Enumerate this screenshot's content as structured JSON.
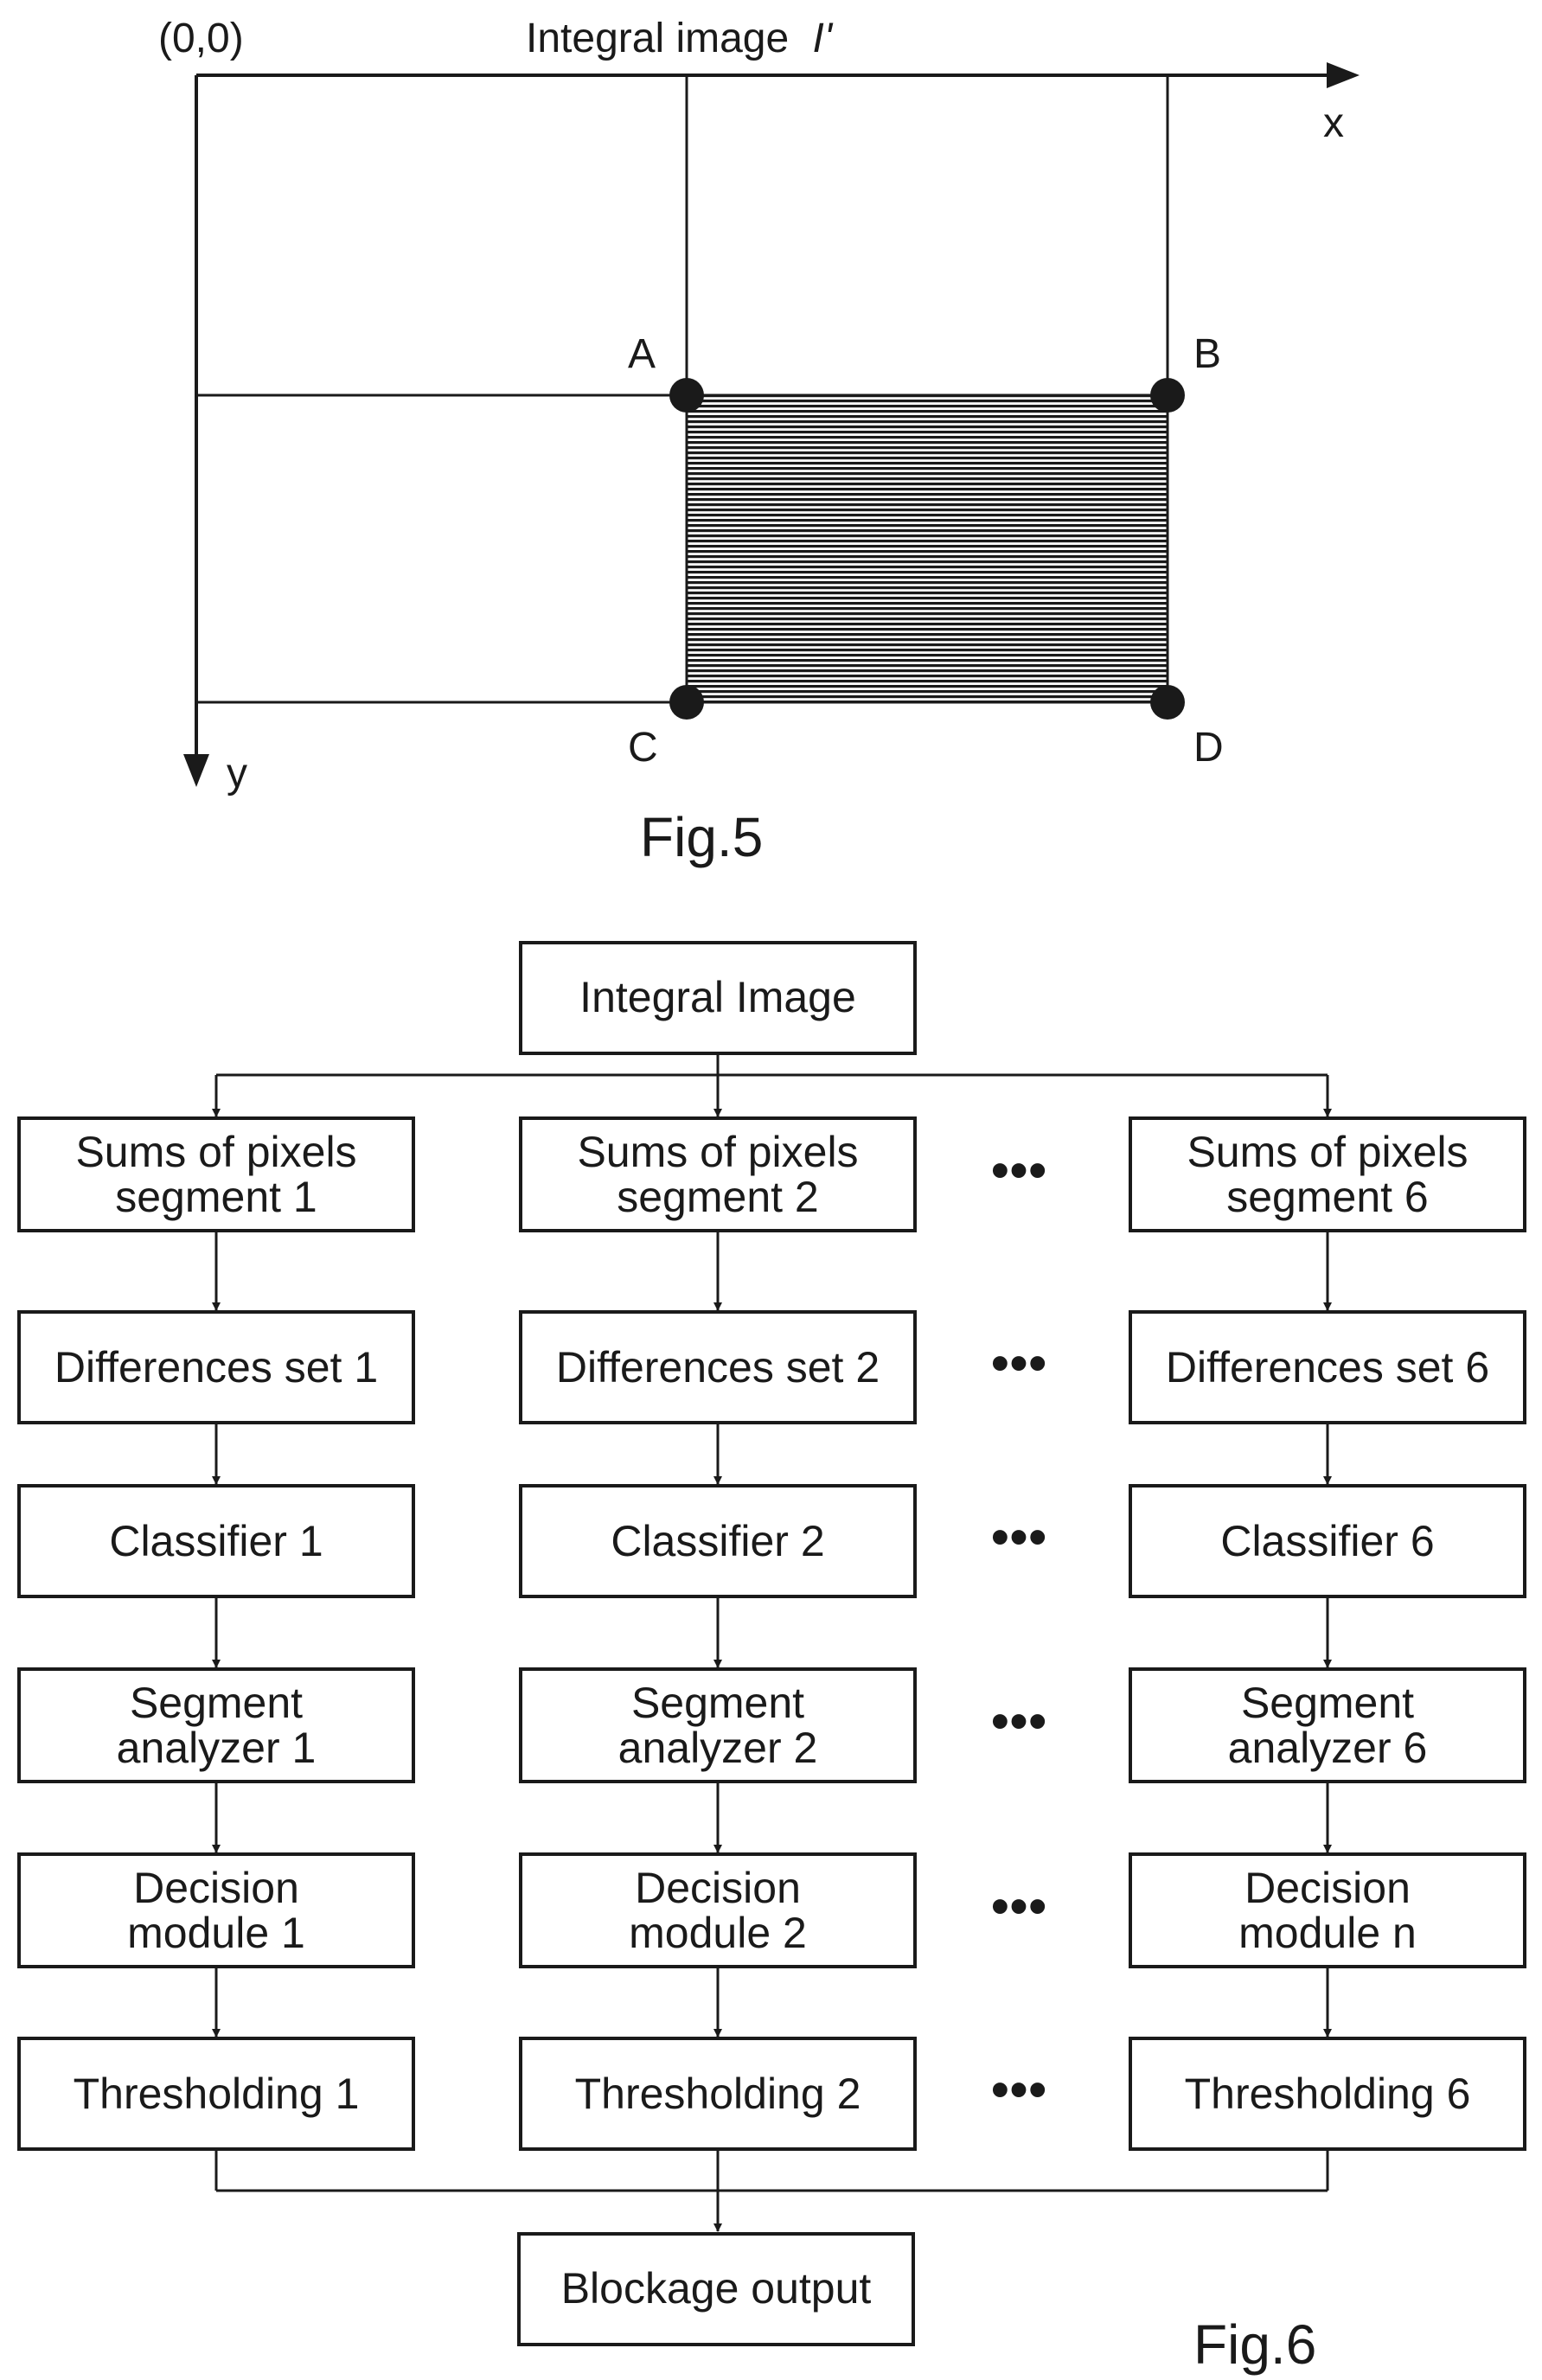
{
  "fig5": {
    "origin_label": "(0,0)",
    "title": "Integral image",
    "title_symbol": "I'",
    "x_axis_label": "x",
    "y_axis_label": "y",
    "points": [
      "A",
      "B",
      "C",
      "D"
    ],
    "caption": "Fig.5"
  },
  "fig6": {
    "top_box": "Integral Image",
    "columns": [
      {
        "sums": [
          "Sums of pixels",
          "segment 1"
        ],
        "differences": [
          "Differences set 1"
        ],
        "classifier": [
          "Classifier 1"
        ],
        "analyzer": [
          "Segment",
          "analyzer 1"
        ],
        "decision": [
          "Decision",
          "module 1"
        ],
        "thresholding": [
          "Thresholding 1"
        ]
      },
      {
        "sums": [
          "Sums of pixels",
          "segment 2"
        ],
        "differences": [
          "Differences set 2"
        ],
        "classifier": [
          "Classifier 2"
        ],
        "analyzer": [
          "Segment",
          "analyzer 2"
        ],
        "decision": [
          "Decision",
          "module 2"
        ],
        "thresholding": [
          "Thresholding 2"
        ]
      },
      {
        "sums": [
          "Sums of pixels",
          "segment 6"
        ],
        "differences": [
          "Differences set 6"
        ],
        "classifier": [
          "Classifier 6"
        ],
        "analyzer": [
          "Segment",
          "analyzer 6"
        ],
        "decision": [
          "Decision",
          "module n"
        ],
        "thresholding": [
          "Thresholding 6"
        ]
      }
    ],
    "ellipsis": "•••",
    "bottom_box": "Blockage output",
    "caption": "Fig.6"
  },
  "colors": {
    "ink": "#1a1a1a",
    "background": "#ffffff"
  }
}
